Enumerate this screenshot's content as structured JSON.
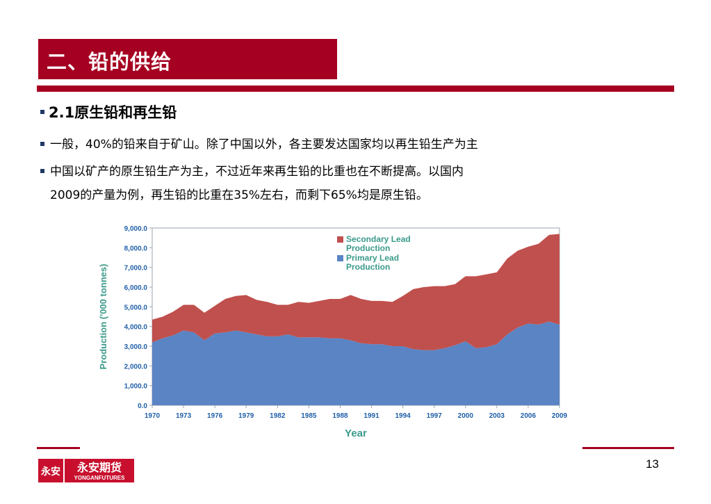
{
  "header": {
    "title": "二、铅的供给"
  },
  "content": {
    "heading": "2.1原生铅和再生铅",
    "bullets": [
      "一般，40%的铅来自于矿山。除了中国以外，各主要发达国家均以再生铅生产为主",
      "中国以矿产的原生铅生产为主，不过近年来再生铅的比重也在不断提高。以国内",
      "2009的产量为例，再生铅的比重在35%左右，而剩下65%均是原生铅。"
    ]
  },
  "footer": {
    "page_number": "13",
    "logo_cn": "永安期货",
    "logo_en": "YONGANFUTURES",
    "logo_mark": "永安"
  },
  "colors": {
    "brand_red": "#a50021",
    "primary": "#5b84c4",
    "secondary": "#c0504d",
    "axis_text": "#1f5fa8",
    "label_green": "#3a9a8a"
  },
  "chart_data": {
    "type": "area",
    "xlabel": "Year",
    "ylabel": "Production ('000 tonnes)",
    "ylim": [
      0,
      9000
    ],
    "yticks": [
      "0.0",
      "1,000.0",
      "2,000.0",
      "3,000.0",
      "4,000.0",
      "5,000.0",
      "6,000.0",
      "7,000.0",
      "8,000.0",
      "9,000.0"
    ],
    "xticks": [
      "1970",
      "1973",
      "1976",
      "1979",
      "1982",
      "1985",
      "1988",
      "1991",
      "1994",
      "1997",
      "2000",
      "2003",
      "2006",
      "2009"
    ],
    "x": [
      1970,
      1971,
      1972,
      1973,
      1974,
      1975,
      1976,
      1977,
      1978,
      1979,
      1980,
      1981,
      1982,
      1983,
      1984,
      1985,
      1986,
      1987,
      1988,
      1989,
      1990,
      1991,
      1992,
      1993,
      1994,
      1995,
      1996,
      1997,
      1998,
      1999,
      2000,
      2001,
      2002,
      2003,
      2004,
      2005,
      2006,
      2007,
      2008,
      2009
    ],
    "stacked": true,
    "legend_position": "top-right",
    "series": [
      {
        "name": "Primary Lead Production",
        "color": "#5b84c4",
        "values": [
          3200,
          3400,
          3550,
          3800,
          3700,
          3300,
          3650,
          3700,
          3800,
          3700,
          3600,
          3500,
          3500,
          3600,
          3450,
          3450,
          3450,
          3400,
          3400,
          3300,
          3150,
          3100,
          3100,
          3000,
          3000,
          2850,
          2800,
          2800,
          2900,
          3050,
          3250,
          2900,
          2950,
          3100,
          3600,
          3950,
          4150,
          4100,
          4250,
          4100
        ]
      },
      {
        "name": "Secondary Lead Production",
        "color": "#c0504d",
        "values": [
          1150,
          1100,
          1200,
          1300,
          1400,
          1400,
          1400,
          1700,
          1750,
          1900,
          1750,
          1750,
          1600,
          1500,
          1800,
          1750,
          1850,
          2000,
          2000,
          2300,
          2250,
          2200,
          2200,
          2250,
          2550,
          3050,
          3200,
          3250,
          3150,
          3100,
          3300,
          3650,
          3700,
          3650,
          3850,
          3900,
          3900,
          4100,
          4400,
          4600
        ]
      }
    ]
  }
}
